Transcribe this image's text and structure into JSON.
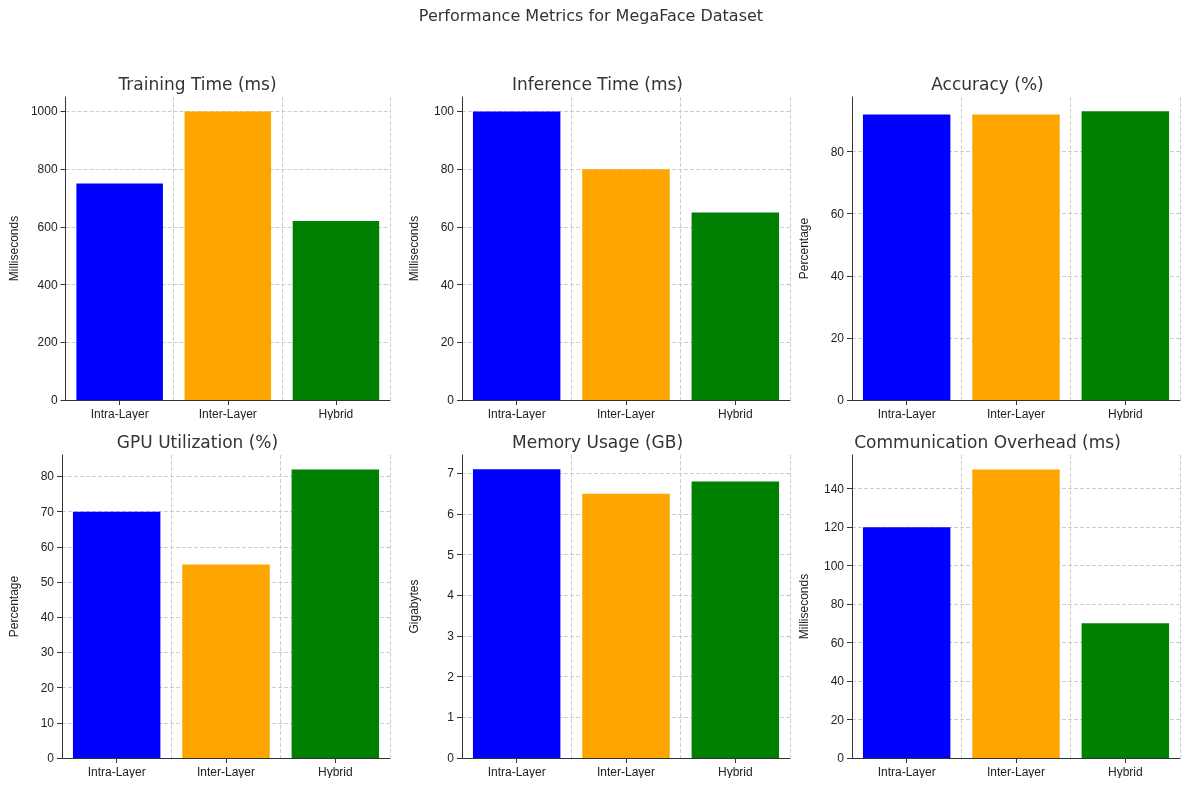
{
  "chart_data": [
    {
      "type": "bar",
      "title": "Training Time (ms)",
      "ylabel": "Milliseconds",
      "annotations": [
        "Performance Metrics for MegaFace Dataset"
      ],
      "categories": [
        "Intra-Layer",
        "Inter-Layer",
        "Hybrid"
      ],
      "values": [
        750,
        1000,
        620
      ],
      "colors": [
        "#0000ff",
        "#ffa500",
        "#008000"
      ],
      "ylim": [
        0,
        1050
      ],
      "yticks": [
        0,
        200,
        400,
        600,
        800,
        1000
      ],
      "grid": true
    },
    {
      "type": "bar",
      "title": "Inference Time (ms)",
      "ylabel": "Milliseconds",
      "categories": [
        "Intra-Layer",
        "Inter-Layer",
        "Hybrid"
      ],
      "values": [
        100,
        80,
        65
      ],
      "colors": [
        "#0000ff",
        "#ffa500",
        "#008000"
      ],
      "ylim": [
        0,
        105
      ],
      "yticks": [
        0,
        20,
        40,
        60,
        80,
        100
      ],
      "grid": true
    },
    {
      "type": "bar",
      "title": "Accuracy (%)",
      "ylabel": "Percentage",
      "categories": [
        "Intra-Layer",
        "Inter-Layer",
        "Hybrid"
      ],
      "values": [
        92,
        92,
        93
      ],
      "colors": [
        "#0000ff",
        "#ffa500",
        "#008000"
      ],
      "ylim": [
        0,
        97.6
      ],
      "yticks": [
        0,
        20,
        40,
        60,
        80
      ],
      "grid": true
    },
    {
      "type": "bar",
      "title": "GPU Utilization (%)",
      "ylabel": "Percentage",
      "categories": [
        "Intra-Layer",
        "Inter-Layer",
        "Hybrid"
      ],
      "values": [
        70,
        55,
        82
      ],
      "colors": [
        "#0000ff",
        "#ffa500",
        "#008000"
      ],
      "ylim": [
        0,
        86.1
      ],
      "yticks": [
        0,
        10,
        20,
        30,
        40,
        50,
        60,
        70,
        80
      ],
      "grid": true
    },
    {
      "type": "bar",
      "title": "Memory Usage (GB)",
      "ylabel": "Gigabytes",
      "categories": [
        "Intra-Layer",
        "Inter-Layer",
        "Hybrid"
      ],
      "values": [
        7.1,
        6.5,
        6.8
      ],
      "colors": [
        "#0000ff",
        "#ffa500",
        "#008000"
      ],
      "ylim": [
        0,
        7.45
      ],
      "yticks": [
        0,
        1,
        2,
        3,
        4,
        5,
        6,
        7
      ],
      "grid": true
    },
    {
      "type": "bar",
      "title": "Communication Overhead (ms)",
      "ylabel": "Milliseconds",
      "categories": [
        "Intra-Layer",
        "Inter-Layer",
        "Hybrid"
      ],
      "values": [
        120,
        150,
        70
      ],
      "colors": [
        "#0000ff",
        "#ffa500",
        "#008000"
      ],
      "ylim": [
        0,
        157.5
      ],
      "yticks": [
        0,
        20,
        40,
        60,
        80,
        100,
        120,
        140
      ],
      "grid": true
    }
  ]
}
